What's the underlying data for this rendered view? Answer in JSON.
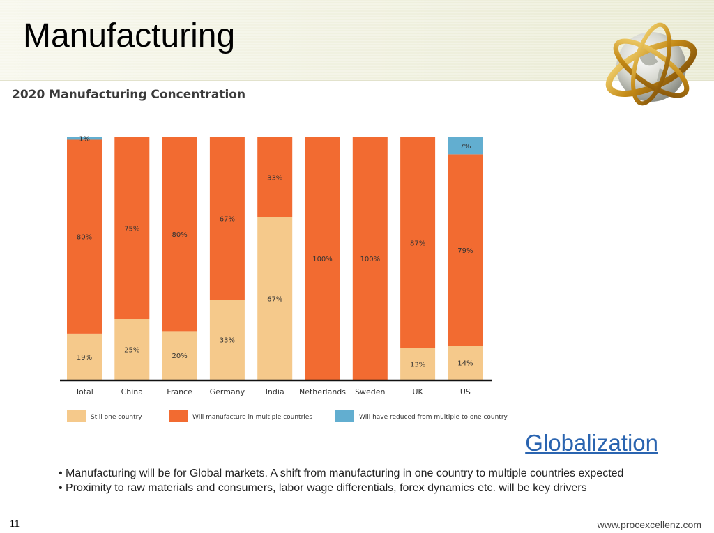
{
  "slide": {
    "title": "Manufacturing",
    "link_text": "Globalization",
    "bullets": [
      "Manufacturing will be for Global markets. A shift from manufacturing in one country to multiple countries expected",
      "Proximity to raw materials and consumers, labor wage differentials, forex dynamics etc. will be key drivers"
    ],
    "page_number": "11",
    "website": "www.procexcellenz.com",
    "decoration": "globe-icon"
  },
  "chart_data": {
    "type": "bar",
    "stacked": true,
    "percent": true,
    "title": "2020 Manufacturing Concentration",
    "categories": [
      "Total",
      "China",
      "France",
      "Germany",
      "India",
      "Netherlands",
      "Sweden",
      "UK",
      "US"
    ],
    "series": [
      {
        "name": "Still one country",
        "color": "#f5c98b",
        "values": [
          19,
          25,
          20,
          33,
          67,
          0,
          0,
          13,
          14
        ],
        "labels": [
          "19%",
          "25%",
          "20%",
          "33%",
          "67%",
          "",
          "",
          "13%",
          "14%"
        ]
      },
      {
        "name": "Will manufacture in multiple countries",
        "color": "#f26b31",
        "values": [
          80,
          75,
          80,
          67,
          33,
          100,
          100,
          87,
          79
        ],
        "labels": [
          "80%",
          "75%",
          "80%",
          "67%",
          "33%",
          "100%",
          "100%",
          "87%",
          "79%"
        ]
      },
      {
        "name": "Will have reduced from multiple to one country",
        "color": "#62aed0",
        "values": [
          1,
          0,
          0,
          0,
          0,
          0,
          0,
          0,
          7
        ],
        "labels": [
          "1%",
          "",
          "",
          "",
          "",
          "",
          "",
          "",
          "7%"
        ]
      }
    ],
    "ylim": [
      0,
      100
    ],
    "legend_position": "bottom",
    "grid": false,
    "xlabel": "",
    "ylabel": ""
  }
}
